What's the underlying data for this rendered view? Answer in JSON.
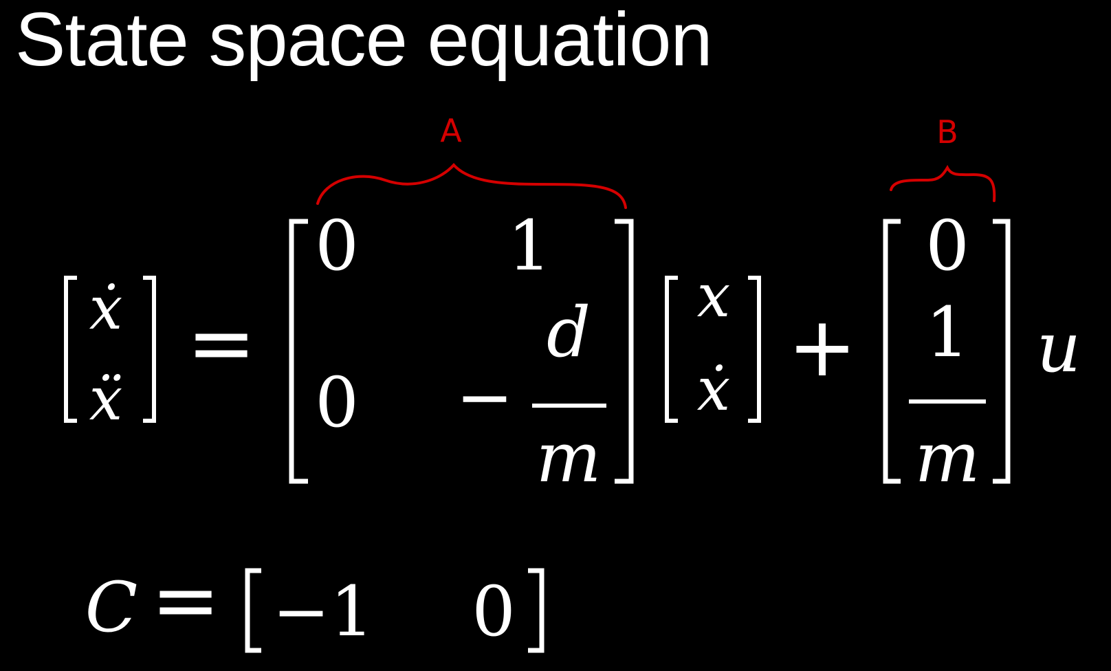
{
  "slide": {
    "title": "State space equation"
  },
  "equation": {
    "lhs": [
      "ẋ",
      "ẍ"
    ],
    "equals": "=",
    "matrix_A": {
      "r1c1": "0",
      "r1c2": "1",
      "r2c1": "0",
      "r2c2_sign": "−",
      "r2c2_num": "d",
      "r2c2_den": "m"
    },
    "state_vector": [
      "x",
      "ẋ"
    ],
    "plus": "+",
    "matrix_B": {
      "r1": "0",
      "r2_num": "1",
      "r2_den": "m"
    },
    "input": "u"
  },
  "annotations": {
    "label_A": "A",
    "label_B": "B",
    "color": "#d40000"
  },
  "output_eq": {
    "lhs": "C",
    "equals": "=",
    "e1": "−1",
    "e2": "0"
  }
}
